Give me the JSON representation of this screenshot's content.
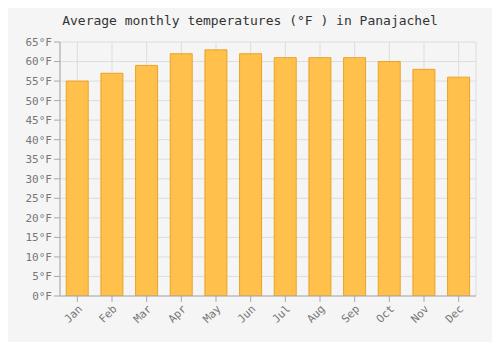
{
  "chart_data": {
    "type": "bar",
    "title": "Average monthly temperatures (°F ) in Panajachel",
    "categories": [
      "Jan",
      "Feb",
      "Mar",
      "Apr",
      "May",
      "Jun",
      "Jul",
      "Aug",
      "Sep",
      "Oct",
      "Nov",
      "Dec"
    ],
    "values": [
      55,
      57,
      59,
      62,
      63,
      62,
      61,
      61,
      61,
      60,
      58,
      56
    ],
    "color": "#FFC04C",
    "ylim": [
      0,
      65
    ],
    "yticks": [
      {
        "value": 0,
        "label": "0°F"
      },
      {
        "value": 5,
        "label": "5°F"
      },
      {
        "value": 10,
        "label": "10°F"
      },
      {
        "value": 15,
        "label": "15°F"
      },
      {
        "value": 20,
        "label": "20°F"
      },
      {
        "value": 25,
        "label": "25°F"
      },
      {
        "value": 30,
        "label": "30°F"
      },
      {
        "value": 35,
        "label": "35°F"
      },
      {
        "value": 40,
        "label": "40°F"
      },
      {
        "value": 45,
        "label": "45°F"
      },
      {
        "value": 50,
        "label": "50°F"
      },
      {
        "value": 55,
        "label": "55°F"
      },
      {
        "value": 60,
        "label": "60°F"
      },
      {
        "value": 65,
        "label": "65°F"
      }
    ],
    "grid": true
  }
}
